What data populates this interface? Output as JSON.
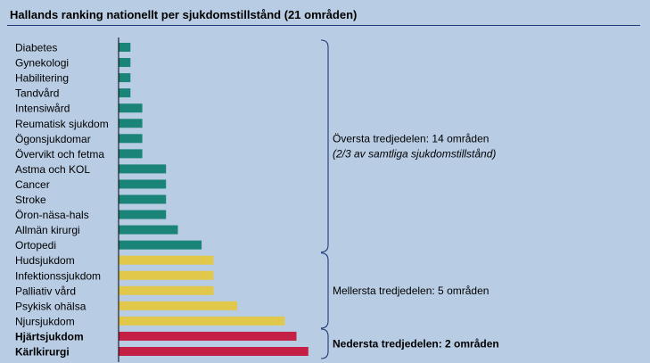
{
  "title": "Hallands ranking nationellt per sjukdomstillstånd (21 områden)",
  "colors": {
    "top": "#1a8478",
    "middle": "#e2c84a",
    "bottom": "#c41f45",
    "axis": "#000000",
    "bracket": "#1f3a7a",
    "background": "#b8cce4"
  },
  "chart_data": {
    "type": "bar",
    "orientation": "horizontal",
    "categories": [
      "Diabetes",
      "Gynekologi",
      "Habilitering",
      "Tandvård",
      "Intensiwård",
      "Reumatisk sjukdom",
      "Ögonsjukdomar",
      "Övervikt och fetma",
      "Astma och KOL",
      "Cancer",
      "Stroke",
      "Öron-näsa-hals",
      "Allmän kirurgi",
      "Ortopedi",
      "Hudsjukdom",
      "Infektionssjukdom",
      "Palliativ vård",
      "Psykisk ohälsa",
      "Njursjukdom",
      "Hjärtsjukdom",
      "Kärlkirurgi"
    ],
    "values": [
      1,
      1,
      1,
      1,
      2,
      2,
      2,
      2,
      4,
      4,
      4,
      4,
      5,
      7,
      8,
      8,
      8,
      10,
      14,
      15,
      16
    ],
    "groups": [
      "top",
      "top",
      "top",
      "top",
      "top",
      "top",
      "top",
      "top",
      "top",
      "top",
      "top",
      "top",
      "top",
      "top",
      "middle",
      "middle",
      "middle",
      "middle",
      "middle",
      "bottom",
      "bottom"
    ],
    "bold": [
      false,
      false,
      false,
      false,
      false,
      false,
      false,
      false,
      false,
      false,
      false,
      false,
      false,
      false,
      false,
      false,
      false,
      false,
      false,
      true,
      true
    ],
    "xlim": [
      0,
      16
    ],
    "grid": false,
    "annotations": [
      {
        "group": "top",
        "from": 0,
        "to": 13,
        "lines": [
          "Översta tredjedelen: 14 områden",
          "(2/3 av samtliga sjukdomstillstånd)"
        ],
        "bold": false
      },
      {
        "group": "middle",
        "from": 14,
        "to": 18,
        "lines": [
          "Mellersta tredjedelen: 5 områden"
        ],
        "bold": false
      },
      {
        "group": "bottom",
        "from": 19,
        "to": 20,
        "lines": [
          "Nedersta tredjedelen: 2 områden"
        ],
        "bold": true
      }
    ]
  }
}
